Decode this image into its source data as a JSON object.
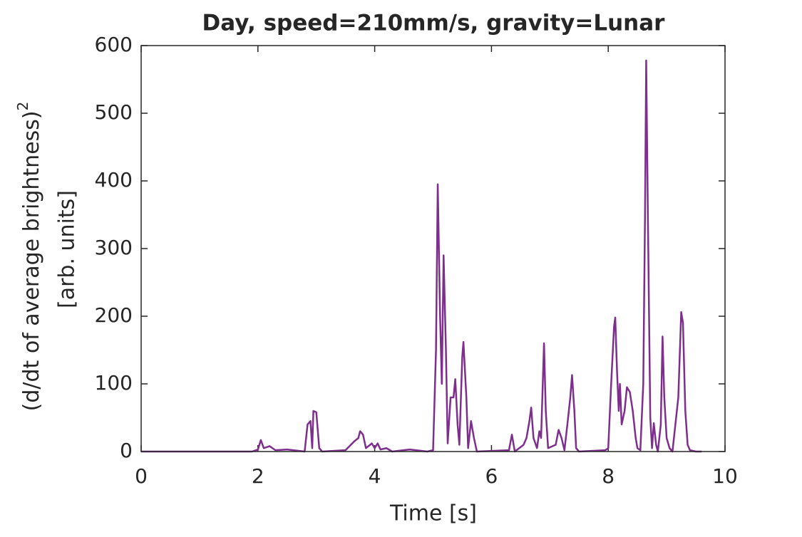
{
  "chart_data": {
    "type": "line",
    "title": "Day, speed=210mm/s, gravity=Lunar",
    "xlabel": "Time [s]",
    "ylabel": {
      "text": "(d/dt of average brightness)",
      "superscript": "2",
      "units": "[arb. units]"
    },
    "xlim": [
      0,
      10
    ],
    "xticks": [
      0,
      2,
      4,
      6,
      8,
      10
    ],
    "ylim": [
      0,
      600
    ],
    "yticks": [
      0,
      100,
      200,
      300,
      400,
      500,
      600
    ],
    "series": [
      {
        "color": "#7e2f8e",
        "x": [
          0,
          1.9,
          2.0,
          2.05,
          2.1,
          2.2,
          2.3,
          2.5,
          2.8,
          2.85,
          2.9,
          2.93,
          2.95,
          3.0,
          3.05,
          3.1,
          3.5,
          3.65,
          3.72,
          3.75,
          3.8,
          3.85,
          3.95,
          4.0,
          4.05,
          4.1,
          4.2,
          4.3,
          4.6,
          4.9,
          5.0,
          5.05,
          5.08,
          5.12,
          5.15,
          5.18,
          5.22,
          5.25,
          5.3,
          5.35,
          5.38,
          5.42,
          5.45,
          5.5,
          5.52,
          5.57,
          5.6,
          5.65,
          5.7,
          5.75,
          6.3,
          6.35,
          6.4,
          6.55,
          6.6,
          6.65,
          6.68,
          6.72,
          6.78,
          6.82,
          6.85,
          6.9,
          6.93,
          6.97,
          7.1,
          7.15,
          7.2,
          7.25,
          7.3,
          7.35,
          7.38,
          7.42,
          7.45,
          7.5,
          7.95,
          8.0,
          8.05,
          8.1,
          8.12,
          8.15,
          8.18,
          8.2,
          8.23,
          8.28,
          8.32,
          8.37,
          8.42,
          8.47,
          8.5,
          8.55,
          8.6,
          8.63,
          8.65,
          8.68,
          8.72,
          8.75,
          8.78,
          8.82,
          8.85,
          8.9,
          8.93,
          8.96,
          9.0,
          9.05,
          9.1,
          9.2,
          9.25,
          9.28,
          9.32,
          9.36,
          9.4,
          9.5,
          9.6
        ],
        "values": [
          0,
          0,
          3,
          17,
          5,
          8,
          2,
          3,
          0,
          40,
          45,
          5,
          60,
          58,
          5,
          0,
          2,
          15,
          20,
          30,
          25,
          5,
          12,
          5,
          12,
          3,
          5,
          0,
          3,
          0,
          2,
          150,
          395,
          200,
          100,
          290,
          150,
          12,
          80,
          80,
          107,
          40,
          10,
          140,
          162,
          80,
          5,
          45,
          20,
          0,
          2,
          25,
          0,
          10,
          20,
          45,
          65,
          20,
          5,
          30,
          20,
          160,
          60,
          5,
          10,
          32,
          20,
          2,
          40,
          80,
          113,
          60,
          5,
          0,
          2,
          5,
          100,
          185,
          198,
          120,
          60,
          100,
          40,
          60,
          95,
          88,
          60,
          20,
          5,
          2,
          100,
          350,
          578,
          340,
          50,
          5,
          42,
          10,
          0,
          40,
          170,
          80,
          20,
          5,
          0,
          80,
          206,
          190,
          60,
          10,
          2,
          0,
          0
        ]
      }
    ]
  }
}
